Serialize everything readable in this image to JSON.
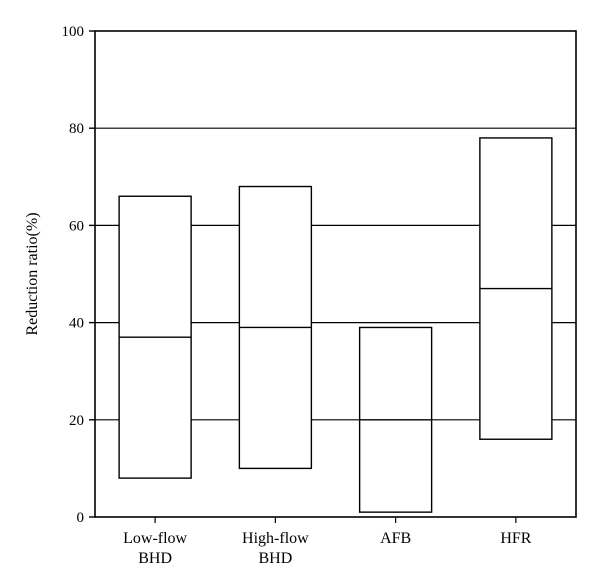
{
  "chart_data": {
    "type": "box",
    "ylabel": "Reduction ratio(%)",
    "xlabel": "",
    "title": "",
    "ylim": [
      0,
      100
    ],
    "yticks": [
      0,
      20,
      40,
      60,
      80,
      100
    ],
    "grid": "horizontal",
    "categories": [
      [
        "Low-flow",
        "BHD"
      ],
      [
        "High-flow",
        "BHD"
      ],
      [
        "AFB"
      ],
      [
        "HFR"
      ]
    ],
    "boxes": [
      {
        "low": 8,
        "median": 37,
        "high": 66
      },
      {
        "low": 10,
        "median": 39,
        "high": 68
      },
      {
        "low": 1,
        "median": 20,
        "high": 39
      },
      {
        "low": 16,
        "median": 47,
        "high": 78
      }
    ]
  }
}
